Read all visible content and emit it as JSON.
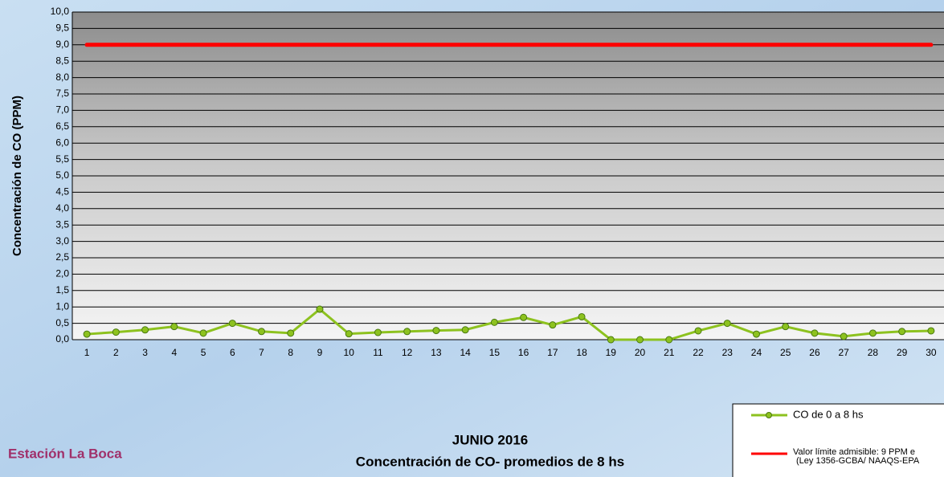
{
  "chart_data": {
    "type": "line",
    "title": "JUNIO 2016",
    "subtitle": "Concentración de CO- promedios de 8 hs",
    "station": "Estación La Boca",
    "y_label": "Concentración de CO (PPM)",
    "categories": [
      "1",
      "2",
      "3",
      "4",
      "5",
      "6",
      "7",
      "8",
      "9",
      "10",
      "11",
      "12",
      "13",
      "14",
      "15",
      "16",
      "17",
      "18",
      "19",
      "20",
      "21",
      "22",
      "23",
      "24",
      "25",
      "26",
      "27",
      "28",
      "29",
      "30"
    ],
    "series": [
      {
        "name": "CO de 0 a 8 hs",
        "color": "#8dc21f",
        "marker": true,
        "values": [
          0.17,
          0.23,
          0.3,
          0.4,
          0.2,
          0.5,
          0.25,
          0.2,
          0.93,
          0.18,
          0.22,
          0.25,
          0.28,
          0.3,
          0.53,
          0.68,
          0.45,
          0.7,
          0,
          0,
          0,
          0.27,
          0.5,
          0.17,
          0.4,
          0.2,
          0.1,
          0.2,
          0.25,
          0.27
        ]
      },
      {
        "name": "Valor límite admisible: 9 PPM e",
        "name_line2": "(Ley 1356-GCBA/ NAAQS-EPA",
        "color": "#ff0000",
        "marker": false,
        "values": [
          9,
          9,
          9,
          9,
          9,
          9,
          9,
          9,
          9,
          9,
          9,
          9,
          9,
          9,
          9,
          9,
          9,
          9,
          9,
          9,
          9,
          9,
          9,
          9,
          9,
          9,
          9,
          9,
          9,
          9
        ]
      }
    ],
    "ylim": [
      0,
      10
    ],
    "yticks": [
      {
        "value": 0,
        "label": "0,0"
      },
      {
        "value": 0.5,
        "label": "0,5"
      },
      {
        "value": 1,
        "label": "1,0"
      },
      {
        "value": 1.5,
        "label": "1,5"
      },
      {
        "value": 2,
        "label": "2,0"
      },
      {
        "value": 2.5,
        "label": "2,5"
      },
      {
        "value": 3,
        "label": "3,0"
      },
      {
        "value": 3.5,
        "label": "3,5"
      },
      {
        "value": 4,
        "label": "4,0"
      },
      {
        "value": 4.5,
        "label": "4,5"
      },
      {
        "value": 5,
        "label": "5,0"
      },
      {
        "value": 5.5,
        "label": "5,5"
      },
      {
        "value": 6,
        "label": "6,0"
      },
      {
        "value": 6.5,
        "label": "6,5"
      },
      {
        "value": 7,
        "label": "7,0"
      },
      {
        "value": 7.5,
        "label": "7,5"
      },
      {
        "value": 8,
        "label": "8,0"
      },
      {
        "value": 8.5,
        "label": "8,5"
      },
      {
        "value": 9,
        "label": "9,0"
      },
      {
        "value": 9.5,
        "label": "9,5"
      },
      {
        "value": 10,
        "label": "10,0"
      }
    ],
    "grid": true
  }
}
